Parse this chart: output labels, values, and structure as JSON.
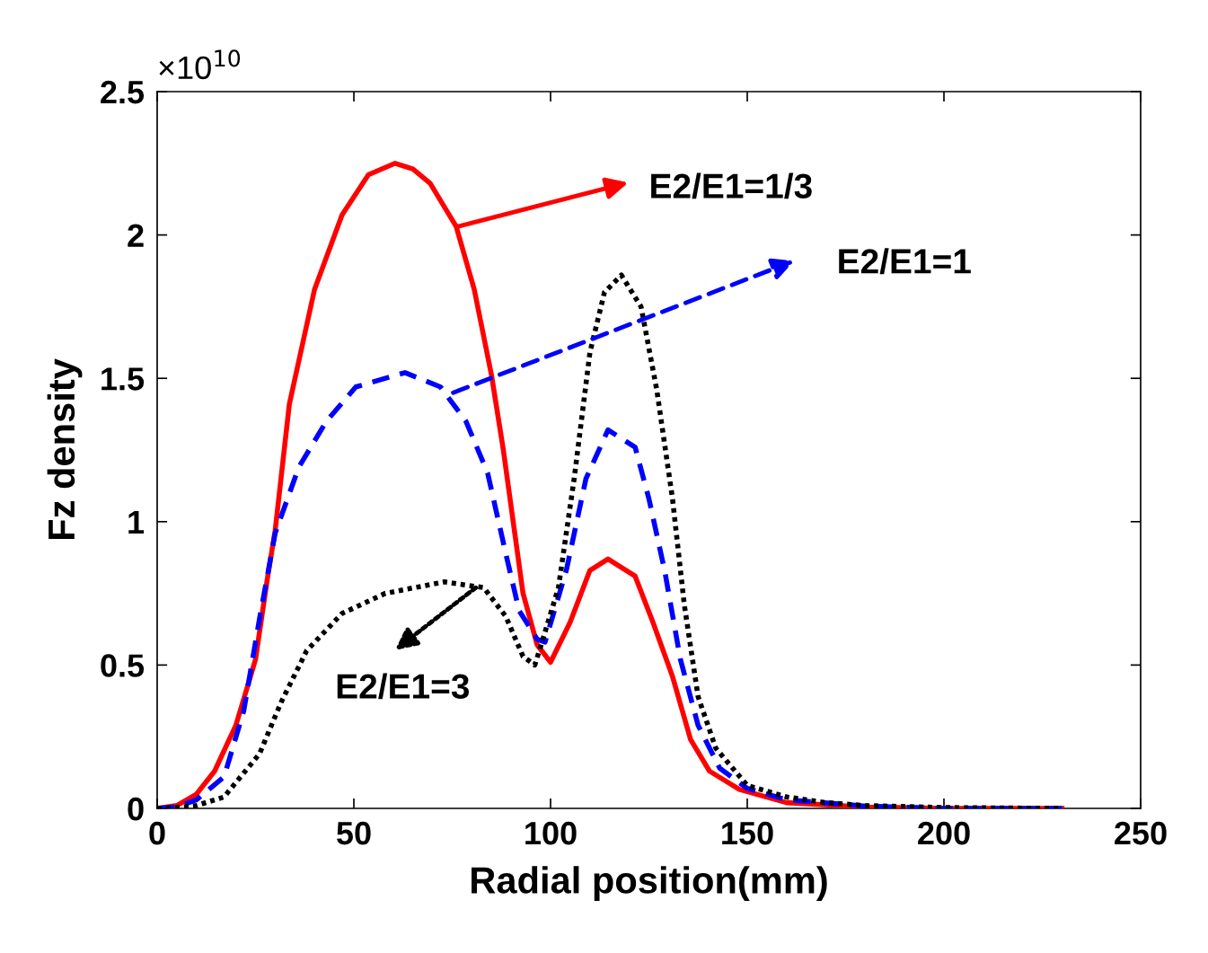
{
  "chart_data": {
    "type": "line",
    "xlabel": "Radial position(mm)",
    "ylabel": "Fz density",
    "xlim": [
      0,
      250
    ],
    "xticks": [
      0,
      50,
      100,
      150,
      200,
      250
    ],
    "ylim": [
      0,
      2.5
    ],
    "yticks": [
      0,
      0.5,
      1,
      1.5,
      2,
      2.5
    ],
    "grid": false,
    "legend": false,
    "marker": "none",
    "series": [
      {
        "color": "#ff0000",
        "line_style": "solid",
        "x": [
          0,
          5,
          10,
          14.6,
          20,
          23.5,
          25,
          28,
          30,
          33.6,
          40,
          47,
          53.7,
          60.5,
          65,
          69.4,
          76,
          80.6,
          85,
          88,
          90,
          93,
          96.6,
          100,
          105,
          110,
          114.6,
          121.5,
          126,
          131,
          135.6,
          140.4,
          148,
          160,
          180,
          200,
          230
        ],
        "values": [
          0,
          0.01,
          0.05,
          0.13,
          0.29,
          0.45,
          0.52,
          0.8,
          0.97,
          1.41,
          1.81,
          2.07,
          2.21,
          2.25,
          2.23,
          2.18,
          2.03,
          1.81,
          1.51,
          1.25,
          1.05,
          0.75,
          0.57,
          0.51,
          0.65,
          0.83,
          0.87,
          0.81,
          0.65,
          0.46,
          0.24,
          0.13,
          0.066,
          0.02,
          0.005,
          0,
          0
        ]
      },
      {
        "color": "#0000ff",
        "line_style": "dashed",
        "x": [
          0,
          5,
          10,
          17,
          22,
          26,
          30,
          36,
          43,
          50.5,
          63,
          72,
          78.5,
          84,
          88.6,
          92,
          96.6,
          98.6,
          104,
          109,
          114.6,
          121.5,
          125,
          129,
          133,
          137.5,
          143,
          150,
          160,
          180,
          200,
          230
        ],
        "values": [
          0,
          0.005,
          0.03,
          0.11,
          0.34,
          0.66,
          0.96,
          1.19,
          1.35,
          1.47,
          1.52,
          1.47,
          1.35,
          1.17,
          0.89,
          0.69,
          0.59,
          0.58,
          0.83,
          1.15,
          1.32,
          1.26,
          1.08,
          0.83,
          0.52,
          0.29,
          0.14,
          0.07,
          0.03,
          0.008,
          0,
          0
        ]
      },
      {
        "color": "#000000",
        "line_style": "dotted",
        "x": [
          0,
          5,
          10,
          17,
          26,
          31.5,
          38,
          47,
          58,
          73,
          83,
          88.6,
          93,
          96,
          97.6,
          102,
          106,
          110,
          113.7,
          118,
          123,
          127,
          131,
          134,
          137.5,
          142,
          150,
          160,
          170,
          180,
          200,
          230
        ],
        "values": [
          0,
          0.003,
          0.01,
          0.04,
          0.19,
          0.37,
          0.55,
          0.68,
          0.75,
          0.79,
          0.77,
          0.67,
          0.53,
          0.5,
          0.57,
          0.77,
          1.15,
          1.59,
          1.8,
          1.86,
          1.75,
          1.46,
          1.08,
          0.71,
          0.39,
          0.21,
          0.08,
          0.04,
          0.02,
          0.01,
          0.003,
          0
        ]
      }
    ],
    "annotations": [
      {
        "text": "E2/E1=1/3",
        "x": 76.5,
        "y": 2.03
      },
      "E2/E1=1",
      {
        "text": "E2/E1=3",
        "x": 81,
        "y": 0.77
      },
      "×10$^{10}$"
    ]
  }
}
